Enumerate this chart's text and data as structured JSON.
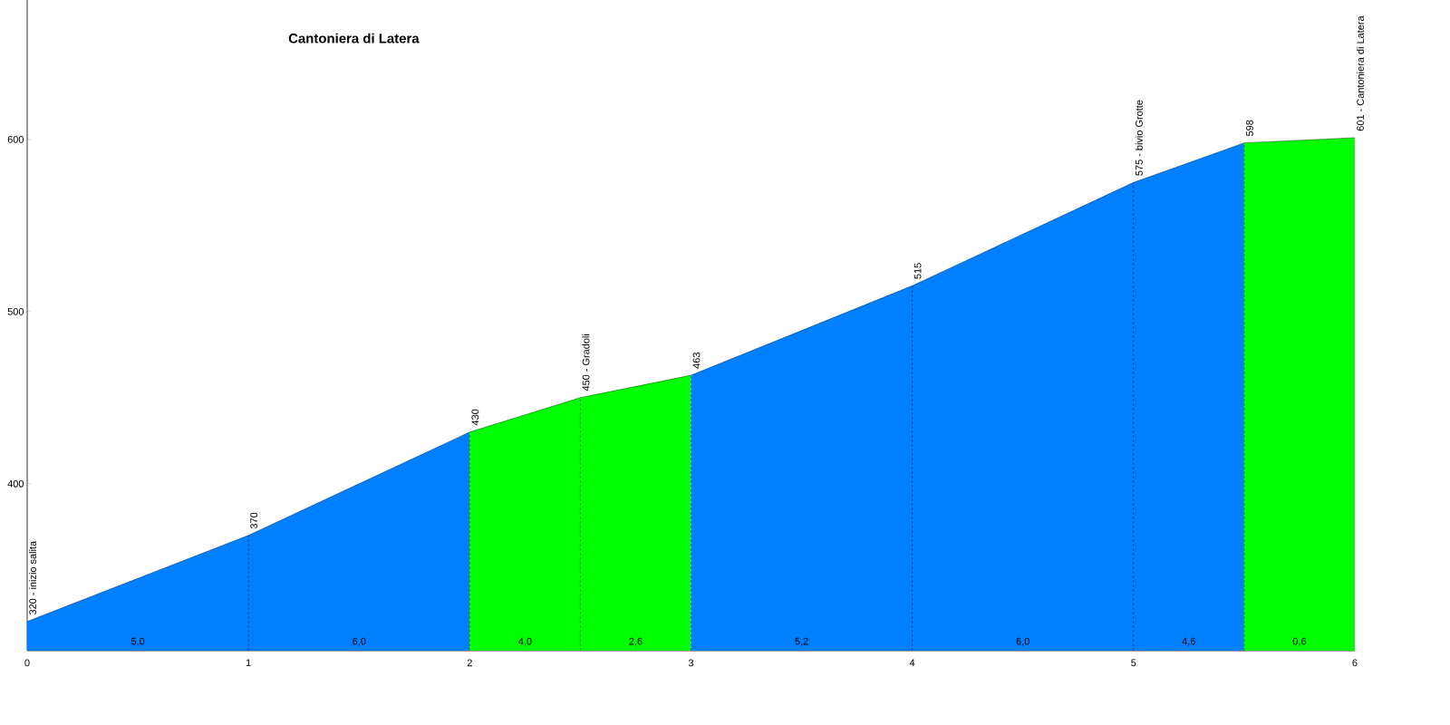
{
  "chart_data": {
    "type": "area",
    "title": "Cantoniera di Latera",
    "x": [
      0,
      1,
      2,
      2.5,
      3,
      4,
      5,
      5.5,
      6
    ],
    "xlim": [
      0,
      6
    ],
    "xticks": [
      0,
      1,
      2,
      3,
      4,
      5,
      6
    ],
    "ylim": [
      303,
      681
    ],
    "yticks": [
      400,
      500,
      600
    ],
    "series": [
      {
        "values": [
          320,
          370,
          430,
          null,
          463,
          515,
          575,
          598,
          null
        ],
        "color": "#0080ff"
      },
      {
        "values": [
          null,
          null,
          430,
          450,
          463,
          null,
          null,
          598,
          601
        ],
        "color": "#00ff00"
      }
    ],
    "annotations": [
      {
        "text": "320 - inizio salita",
        "x": 0,
        "y": 320
      },
      {
        "text": "370",
        "x": 1,
        "y": 370
      },
      {
        "text": "430",
        "x": 2,
        "y": 430
      },
      {
        "text": "450 - Gradoli",
        "x": 2.5,
        "y": 450
      },
      {
        "text": "463",
        "x": 3,
        "y": 463
      },
      {
        "text": "515",
        "x": 4,
        "y": 515
      },
      {
        "text": "575 - bivio Grotte",
        "x": 5,
        "y": 575
      },
      {
        "text": "598",
        "x": 5.5,
        "y": 598
      },
      {
        "text": "601 - Cantoniera di Latera",
        "x": 6,
        "y": 601
      },
      {
        "text": "5,0",
        "x": 0.5,
        "y": 303
      },
      {
        "text": "6,0",
        "x": 1.5,
        "y": 303
      },
      {
        "text": "4,0",
        "x": 2.25,
        "y": 303
      },
      {
        "text": "2,6",
        "x": 2.75,
        "y": 303
      },
      {
        "text": "5,2",
        "x": 3.5,
        "y": 303
      },
      {
        "text": "6,0",
        "x": 4.5,
        "y": 303
      },
      {
        "text": "4,6",
        "x": 5.25,
        "y": 303
      },
      {
        "text": "0,6",
        "x": 5.75,
        "y": 303
      }
    ]
  }
}
